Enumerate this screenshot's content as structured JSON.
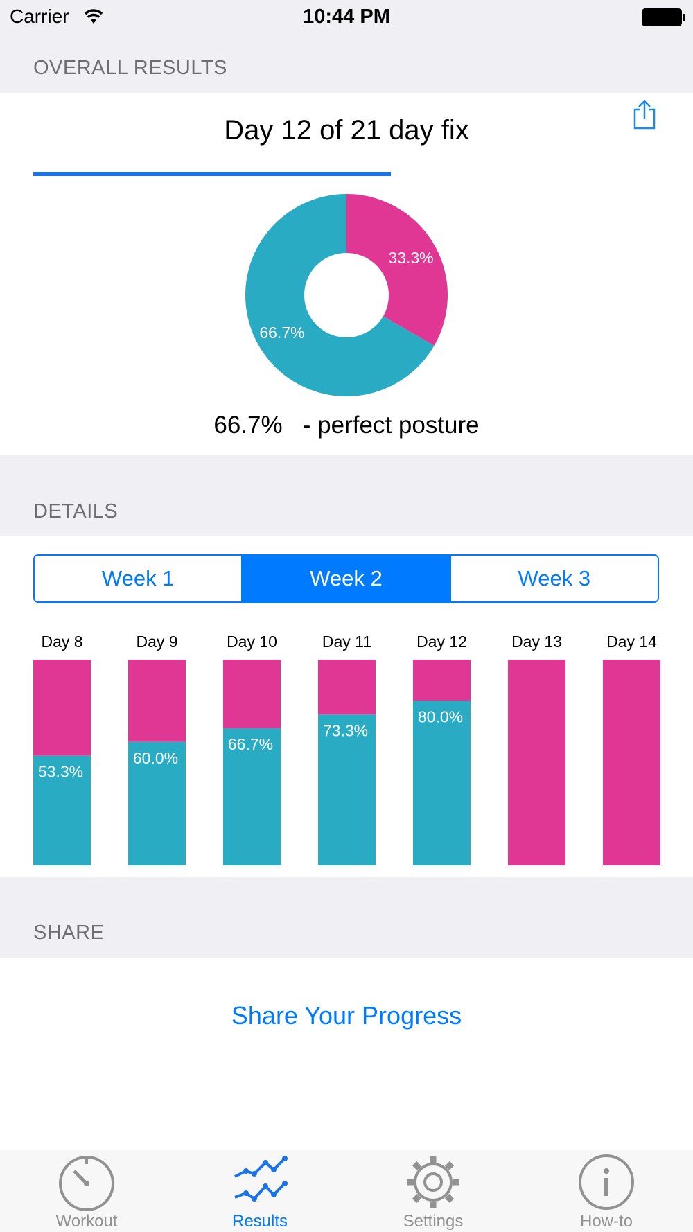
{
  "status_bar": {
    "carrier": "Carrier",
    "time": "10:44 PM"
  },
  "overall": {
    "section_title": "OVERALL RESULTS",
    "day_title": "Day 12 of 21 day fix",
    "progress_fraction": 0.571,
    "posture_percent": "66.7%",
    "posture_text": " - perfect posture"
  },
  "details": {
    "section_title": "DETAILS",
    "segments": [
      {
        "label": "Week 1",
        "selected": false
      },
      {
        "label": "Week 2",
        "selected": true
      },
      {
        "label": "Week 3",
        "selected": false
      }
    ]
  },
  "share": {
    "section_title": "SHARE",
    "link_label": "Share Your Progress"
  },
  "tab_bar": {
    "tabs": [
      {
        "label": "Workout",
        "icon": "stopwatch-icon",
        "active": false
      },
      {
        "label": "Results",
        "icon": "line-chart-icon",
        "active": true
      },
      {
        "label": "Settings",
        "icon": "gear-icon",
        "active": false
      },
      {
        "label": "How-to",
        "icon": "info-icon",
        "active": false
      }
    ]
  },
  "colors": {
    "good": "#29abc3",
    "bad": "#df3793",
    "accent": "#007aff"
  },
  "chart_data": [
    {
      "type": "pie",
      "slices": [
        {
          "label": "33.3%",
          "value": 33.3,
          "color": "#df3793"
        },
        {
          "label": "66.7%",
          "value": 66.7,
          "color": "#29abc3"
        }
      ]
    },
    {
      "type": "bar",
      "stacked": true,
      "categories": [
        "Day 8",
        "Day 9",
        "Day 10",
        "Day 11",
        "Day 12",
        "Day 13",
        "Day 14"
      ],
      "series": [
        {
          "color": "#29abc3",
          "values": [
            53.3,
            60.0,
            66.7,
            73.3,
            80.0,
            0,
            0
          ],
          "labels": [
            "53.3%",
            "60.0%",
            "66.7%",
            "73.3%",
            "80.0%",
            "",
            ""
          ]
        },
        {
          "color": "#df3793",
          "values": [
            46.7,
            40.0,
            33.3,
            26.7,
            20.0,
            100,
            100
          ]
        }
      ],
      "ylim": [
        0,
        100
      ]
    }
  ]
}
